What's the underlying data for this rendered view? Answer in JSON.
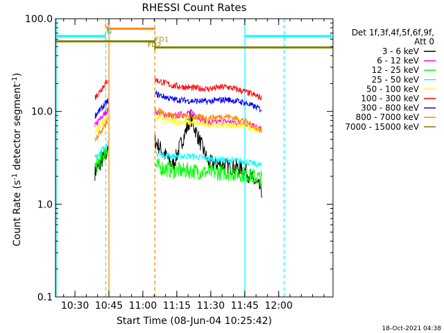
{
  "chart_data": {
    "type": "line",
    "title": "RHESSI Count Rates",
    "xlabel": "Start Time (08-Jun-04 10:25:42)",
    "ylabel": "Count Rate (s⁻¹ detector segment⁻¹)",
    "ylabel_main": "Count Rate (s",
    "ylabel_sup1": "-1",
    "ylabel_mid": " detector segment",
    "ylabel_sup2": "-1",
    "ylabel_end": ")",
    "yscale": "log",
    "ylim": [
      0.1,
      100.0
    ],
    "xlim_minutes": [
      -4.3,
      118.3
    ],
    "y_ticks": [
      "0.1",
      "1.0",
      "10.0",
      "100.0"
    ],
    "x_ticks": [
      {
        "label": "10:30",
        "minute": 4.3
      },
      {
        "label": "10:45",
        "minute": 19.3
      },
      {
        "label": "11:00",
        "minute": 34.3
      },
      {
        "label": "11:15",
        "minute": 49.3
      },
      {
        "label": "11:30",
        "minute": 64.3
      },
      {
        "label": "11:45",
        "minute": 79.3
      },
      {
        "label": "12:00",
        "minute": 94.3
      }
    ],
    "legend_header": [
      "Det 1f,3f,4f,5f,6f,9f,",
      "Att 0"
    ],
    "legend_position": "right",
    "series": [
      {
        "name": "3 - 6 keV",
        "color": "#000000",
        "seg1": [
          2.2,
          3.8
        ],
        "seg2": [
          4.8,
          2.6,
          8.5,
          2.8,
          2.6,
          2.4,
          1.4
        ]
      },
      {
        "name": "6 - 12 keV",
        "color": "#ff00ff",
        "seg1": [
          7.0,
          10.5
        ],
        "seg2": [
          10.0,
          8.8,
          9.8,
          7.5,
          7.8,
          7.5,
          6.4
        ]
      },
      {
        "name": "12 - 25 keV",
        "color": "#00ff00",
        "seg1": [
          2.5,
          4.0
        ],
        "seg2": [
          2.6,
          2.3,
          2.3,
          2.2,
          2.2,
          2.1,
          1.9
        ]
      },
      {
        "name": "25 - 50 keV",
        "color": "#00ffff",
        "seg1": [
          3.2,
          4.5
        ],
        "seg2": [
          3.5,
          3.3,
          3.3,
          3.1,
          3.0,
          2.9,
          2.6
        ]
      },
      {
        "name": "50 - 100 keV",
        "color": "#ffff00",
        "seg1": [
          6.0,
          9.0
        ],
        "seg2": [
          8.8,
          7.8,
          7.6,
          7.3,
          7.2,
          7.0,
          6.2
        ]
      },
      {
        "name": "100 - 300 keV",
        "color": "#ff0000",
        "seg1": [
          14.0,
          22.0
        ],
        "seg2": [
          22.0,
          19.0,
          18.0,
          17.5,
          18.5,
          16.5,
          14.0
        ]
      },
      {
        "name": "300 - 800 keV",
        "color": "#0000ff",
        "seg1": [
          9.0,
          13.0
        ],
        "seg2": [
          15.5,
          13.5,
          13.0,
          12.8,
          13.5,
          12.5,
          10.5
        ]
      },
      {
        "name": "800 - 7000 keV",
        "color": "#ff8800",
        "seg1": [
          5.0,
          8.0
        ],
        "seg2": [
          10.5,
          9.0,
          8.8,
          8.5,
          8.9,
          8.0,
          6.2
        ]
      },
      {
        "name": "7000 - 15000 keV",
        "color": "#996600",
        "seg1": null,
        "seg2": null
      }
    ],
    "segments_minutes": [
      [
        13.1,
        18.9
      ],
      [
        39.7,
        86.8
      ]
    ],
    "flags": [
      {
        "label": "S",
        "color": "#ff8800",
        "x_start": 18.6,
        "x_end": 39.6,
        "y": 78.0,
        "label_minute": 17.2
      },
      {
        "label": "N",
        "color": "#00cccc",
        "x_start": null,
        "x_end": null,
        "y": null,
        "label_minute": 18.3
      },
      {
        "label": "FD1",
        "color": "#999900",
        "x_start": null,
        "x_end": null,
        "y": null,
        "label_minute": 39.7
      },
      {
        "label": "FD2",
        "color": "#808000",
        "x_start": 39.6,
        "x_end": 118.3,
        "y": 49.0,
        "label_minute": 36.4
      }
    ],
    "bars": [
      {
        "color": "#00ffff",
        "x_start": -4.3,
        "x_end": 17.7,
        "y": 65.0
      },
      {
        "color": "#00ffff",
        "x_start": 79.5,
        "x_end": 117.3,
        "y": 65.0
      },
      {
        "color": "#808000",
        "x_start": -4.3,
        "x_end": 39.6,
        "y": 57.0
      }
    ],
    "vlines": [
      {
        "minute": -4.0,
        "color": "#00ffff",
        "style": "solid"
      },
      {
        "minute": 17.9,
        "color": "#00ffff",
        "style": "dashed"
      },
      {
        "minute": 19.3,
        "color": "#ff8800",
        "style": "solid"
      },
      {
        "minute": 39.6,
        "color": "#ff8800",
        "style": "dashed"
      },
      {
        "minute": 79.4,
        "color": "#00ffff",
        "style": "solid"
      },
      {
        "minute": 96.7,
        "color": "#00ffff",
        "style": "dashed"
      }
    ]
  },
  "footer": {
    "timestamp": "18-Oct-2021 04:38"
  }
}
